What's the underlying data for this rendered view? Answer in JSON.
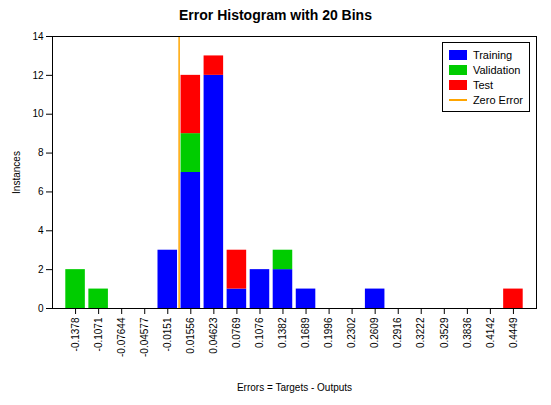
{
  "chart_data": {
    "type": "bar",
    "stacked": true,
    "title": "Error Histogram with 20 Bins",
    "xlabel": "Errors = Targets - Outputs",
    "ylabel": "Instances",
    "x": [
      -0.1378,
      -0.1071,
      -0.07644,
      -0.04577,
      -0.0151,
      0.01556,
      0.04623,
      0.0769,
      0.1076,
      0.1382,
      0.1689,
      0.1996,
      0.2302,
      0.2609,
      0.2916,
      0.3222,
      0.3529,
      0.3836,
      0.4142,
      0.4449
    ],
    "series": [
      {
        "name": "Training",
        "color": "#0000FF",
        "values": [
          0,
          0,
          0,
          0,
          3,
          7,
          12,
          1,
          2,
          2,
          1,
          0,
          0,
          1,
          0,
          0,
          0,
          0,
          0,
          0
        ]
      },
      {
        "name": "Validation",
        "color": "#00CC00",
        "values": [
          2,
          1,
          0,
          0,
          0,
          2,
          0,
          0,
          0,
          1,
          0,
          0,
          0,
          0,
          0,
          0,
          0,
          0,
          0,
          0
        ]
      },
      {
        "name": "Test",
        "color": "#FF0000",
        "values": [
          0,
          0,
          0,
          0,
          0,
          3,
          1,
          2,
          0,
          0,
          0,
          0,
          0,
          0,
          0,
          0,
          0,
          0,
          0,
          1
        ]
      }
    ],
    "reference_lines": [
      {
        "name": "Zero Error",
        "x": 0,
        "color": "#FFA500"
      }
    ],
    "xlim": [
      -0.1685,
      0.4756
    ],
    "xticks": [
      -0.1378,
      -0.1071,
      -0.07644,
      -0.04577,
      -0.0151,
      0.01556,
      0.04623,
      0.0769,
      0.1076,
      0.1382,
      0.1689,
      0.1996,
      0.2302,
      0.2609,
      0.2916,
      0.3222,
      0.3529,
      0.3836,
      0.4142,
      0.4449
    ],
    "ylim": [
      0,
      14
    ],
    "yticks": [
      0,
      2,
      4,
      6,
      8,
      10,
      12,
      14
    ],
    "grid": false,
    "legend": "upper right"
  }
}
